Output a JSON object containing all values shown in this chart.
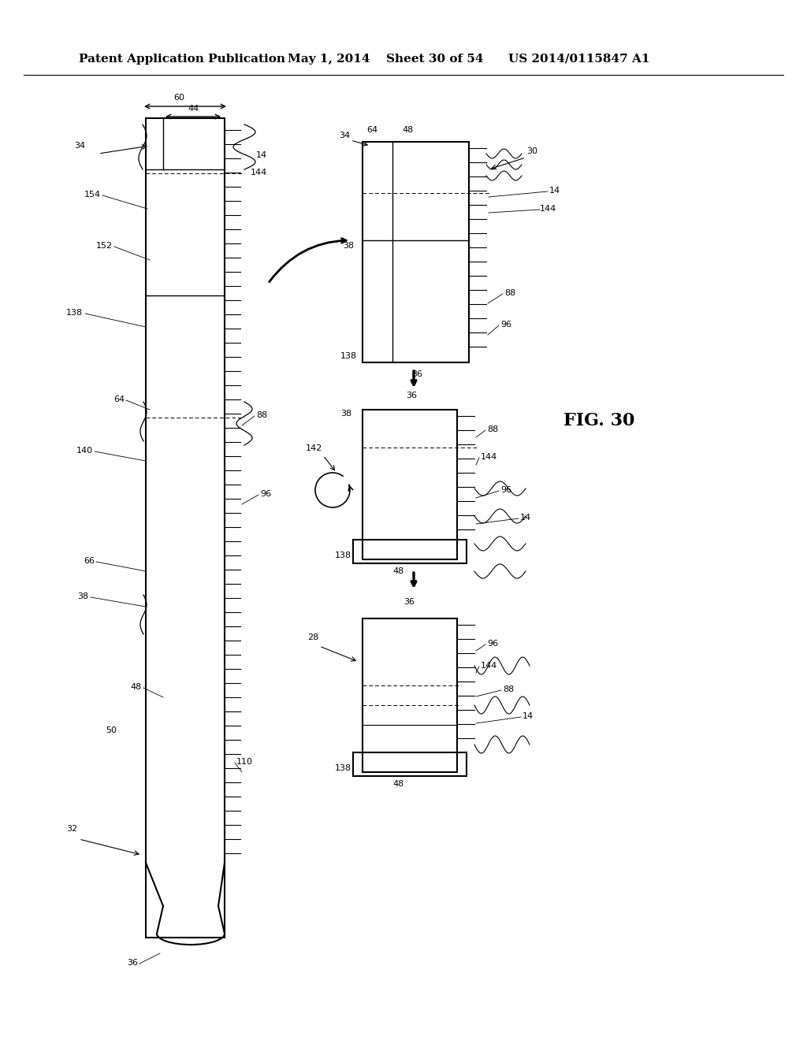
{
  "background_color": "#ffffff",
  "header_text": "Patent Application Publication",
  "header_date": "May 1, 2014",
  "header_sheet": "Sheet 30 of 54",
  "header_patent": "US 2014/0115847 A1",
  "fig_label": "FIG. 30",
  "title_fontsize": 11,
  "fig_label_fontsize": 16
}
